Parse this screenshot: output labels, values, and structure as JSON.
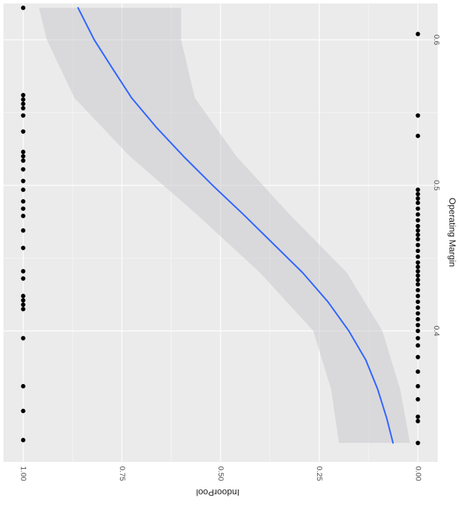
{
  "chart_data": {
    "type": "scatter",
    "orientation": "rotated 90 degrees clockwise",
    "xlabel": "Operating Margin",
    "ylabel": "IndoorPool",
    "xlim": [
      0.31,
      0.625
    ],
    "ylim": [
      -0.05,
      1.05
    ],
    "x_ticks": [
      {
        "value": 0.4,
        "label": "0.4"
      },
      {
        "value": 0.5,
        "label": "0.5"
      },
      {
        "value": 0.6,
        "label": "0.6"
      }
    ],
    "y_ticks": [
      {
        "value": 0.0,
        "label": "0.00"
      },
      {
        "value": 0.25,
        "label": "0.25"
      },
      {
        "value": 0.5,
        "label": "0.50"
      },
      {
        "value": 0.75,
        "label": "0.75"
      },
      {
        "value": 1.0,
        "label": "1.00"
      }
    ],
    "grid": true,
    "colors": {
      "panel": "#ebebeb",
      "gridline": "#ffffff",
      "points": "#000000",
      "fit_line": "#3366ff",
      "ribbon": "#c8c8cc"
    },
    "series": [
      {
        "type": "points",
        "points": [
          {
            "x": 0.325,
            "y": 1
          },
          {
            "x": 0.345,
            "y": 1
          },
          {
            "x": 0.362,
            "y": 1
          },
          {
            "x": 0.395,
            "y": 1
          },
          {
            "x": 0.415,
            "y": 1
          },
          {
            "x": 0.418,
            "y": 1
          },
          {
            "x": 0.421,
            "y": 1
          },
          {
            "x": 0.424,
            "y": 1
          },
          {
            "x": 0.436,
            "y": 1
          },
          {
            "x": 0.441,
            "y": 1
          },
          {
            "x": 0.457,
            "y": 1
          },
          {
            "x": 0.469,
            "y": 1
          },
          {
            "x": 0.479,
            "y": 1
          },
          {
            "x": 0.484,
            "y": 1
          },
          {
            "x": 0.489,
            "y": 1
          },
          {
            "x": 0.497,
            "y": 1
          },
          {
            "x": 0.503,
            "y": 1
          },
          {
            "x": 0.511,
            "y": 1
          },
          {
            "x": 0.517,
            "y": 1
          },
          {
            "x": 0.52,
            "y": 1
          },
          {
            "x": 0.523,
            "y": 1
          },
          {
            "x": 0.537,
            "y": 1
          },
          {
            "x": 0.548,
            "y": 1
          },
          {
            "x": 0.553,
            "y": 1
          },
          {
            "x": 0.556,
            "y": 1
          },
          {
            "x": 0.559,
            "y": 1
          },
          {
            "x": 0.562,
            "y": 1
          },
          {
            "x": 0.622,
            "y": 1
          },
          {
            "x": 0.323,
            "y": 0
          },
          {
            "x": 0.338,
            "y": 0
          },
          {
            "x": 0.341,
            "y": 0
          },
          {
            "x": 0.353,
            "y": 0
          },
          {
            "x": 0.362,
            "y": 0
          },
          {
            "x": 0.372,
            "y": 0
          },
          {
            "x": 0.382,
            "y": 0
          },
          {
            "x": 0.39,
            "y": 0
          },
          {
            "x": 0.395,
            "y": 0
          },
          {
            "x": 0.4,
            "y": 0
          },
          {
            "x": 0.404,
            "y": 0
          },
          {
            "x": 0.408,
            "y": 0
          },
          {
            "x": 0.412,
            "y": 0
          },
          {
            "x": 0.416,
            "y": 0
          },
          {
            "x": 0.42,
            "y": 0
          },
          {
            "x": 0.424,
            "y": 0
          },
          {
            "x": 0.428,
            "y": 0
          },
          {
            "x": 0.432,
            "y": 0
          },
          {
            "x": 0.435,
            "y": 0
          },
          {
            "x": 0.438,
            "y": 0
          },
          {
            "x": 0.441,
            "y": 0
          },
          {
            "x": 0.444,
            "y": 0
          },
          {
            "x": 0.447,
            "y": 0
          },
          {
            "x": 0.451,
            "y": 0
          },
          {
            "x": 0.455,
            "y": 0
          },
          {
            "x": 0.459,
            "y": 0
          },
          {
            "x": 0.463,
            "y": 0
          },
          {
            "x": 0.466,
            "y": 0
          },
          {
            "x": 0.469,
            "y": 0
          },
          {
            "x": 0.472,
            "y": 0
          },
          {
            "x": 0.476,
            "y": 0
          },
          {
            "x": 0.48,
            "y": 0
          },
          {
            "x": 0.484,
            "y": 0
          },
          {
            "x": 0.488,
            "y": 0
          },
          {
            "x": 0.491,
            "y": 0
          },
          {
            "x": 0.494,
            "y": 0
          },
          {
            "x": 0.497,
            "y": 0
          },
          {
            "x": 0.534,
            "y": 0
          },
          {
            "x": 0.548,
            "y": 0
          },
          {
            "x": 0.604,
            "y": 0
          }
        ]
      },
      {
        "type": "smooth_line",
        "points": [
          {
            "x": 0.323,
            "y": 0.063
          },
          {
            "x": 0.34,
            "y": 0.079
          },
          {
            "x": 0.36,
            "y": 0.102
          },
          {
            "x": 0.38,
            "y": 0.132
          },
          {
            "x": 0.4,
            "y": 0.175
          },
          {
            "x": 0.42,
            "y": 0.228
          },
          {
            "x": 0.44,
            "y": 0.292
          },
          {
            "x": 0.46,
            "y": 0.367
          },
          {
            "x": 0.48,
            "y": 0.442
          },
          {
            "x": 0.5,
            "y": 0.52
          },
          {
            "x": 0.52,
            "y": 0.594
          },
          {
            "x": 0.54,
            "y": 0.663
          },
          {
            "x": 0.56,
            "y": 0.725
          },
          {
            "x": 0.58,
            "y": 0.773
          },
          {
            "x": 0.6,
            "y": 0.82
          },
          {
            "x": 0.622,
            "y": 0.861
          }
        ]
      },
      {
        "type": "confidence_band",
        "points": [
          {
            "x": 0.323,
            "lower": 0.02,
            "upper": 0.2
          },
          {
            "x": 0.36,
            "lower": 0.045,
            "upper": 0.22
          },
          {
            "x": 0.4,
            "lower": 0.09,
            "upper": 0.265
          },
          {
            "x": 0.44,
            "lower": 0.18,
            "upper": 0.4
          },
          {
            "x": 0.48,
            "lower": 0.325,
            "upper": 0.56
          },
          {
            "x": 0.52,
            "lower": 0.46,
            "upper": 0.73
          },
          {
            "x": 0.56,
            "lower": 0.565,
            "upper": 0.87
          },
          {
            "x": 0.6,
            "lower": 0.6,
            "upper": 0.94
          },
          {
            "x": 0.622,
            "lower": 0.6,
            "upper": 0.96
          }
        ]
      }
    ]
  }
}
